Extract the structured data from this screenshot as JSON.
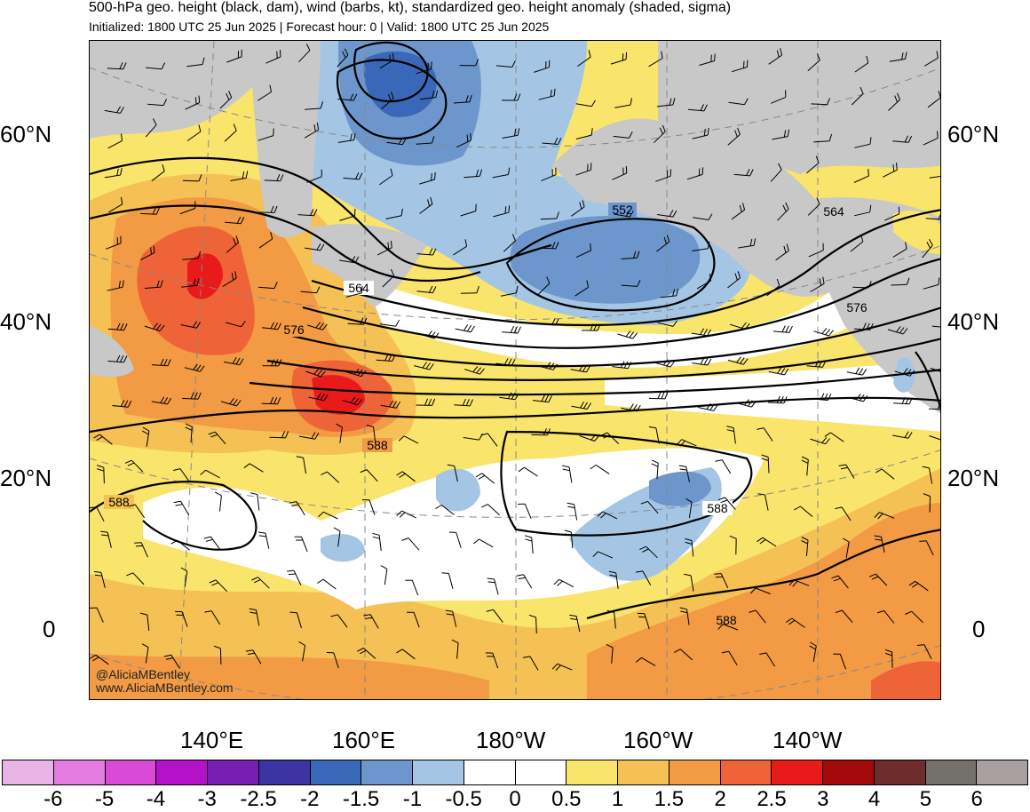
{
  "header": {
    "title": "500-hPa geo. height (black, dam), wind (barbs, kt), standardized geo. height anomaly (shaded, sigma)",
    "subtitle": "Initialized: 1800 UTC 25 Jun 2025 | Forecast hour: 0 | Valid: 1800 UTC 25 Jun 2025"
  },
  "map": {
    "lat_labels_left": [
      "60°N",
      "40°N",
      "20°N",
      "0"
    ],
    "lat_labels_right": [
      "60°N",
      "40°N",
      "20°N",
      "0"
    ],
    "lon_labels": [
      "140°E",
      "160°E",
      "180°W",
      "160°W",
      "140°W"
    ],
    "contour_labels": [
      "552",
      "564",
      "564",
      "576",
      "576",
      "588",
      "588",
      "588",
      "588"
    ],
    "watermark_handle": "@AliciaMBentley",
    "watermark_url": "www.AliciaMBentley.com",
    "colors": {
      "land": "#c8c8c8",
      "contour": "#000000",
      "grid": "#888888",
      "coast": "#555555"
    }
  },
  "colorbar": {
    "labels": [
      "-6",
      "-5",
      "-4",
      "-3",
      "-2.5",
      "-2",
      "-1.5",
      "-1",
      "-0.5",
      "0",
      "0.5",
      "1",
      "1.5",
      "2",
      "2.5",
      "3",
      "4",
      "5",
      "6"
    ],
    "colors": [
      "#e8b4e8",
      "#e57ce0",
      "#d94bd6",
      "#b412c8",
      "#7520b0",
      "#3c34a0",
      "#3a68b8",
      "#6d96cc",
      "#a4c6e4",
      "#ffffff",
      "#ffffff",
      "#f9e46c",
      "#f5c054",
      "#f29a44",
      "#ef6338",
      "#e81a1a",
      "#a30a0a",
      "#6e2c2a",
      "#74706c",
      "#a8a0a0"
    ]
  }
}
